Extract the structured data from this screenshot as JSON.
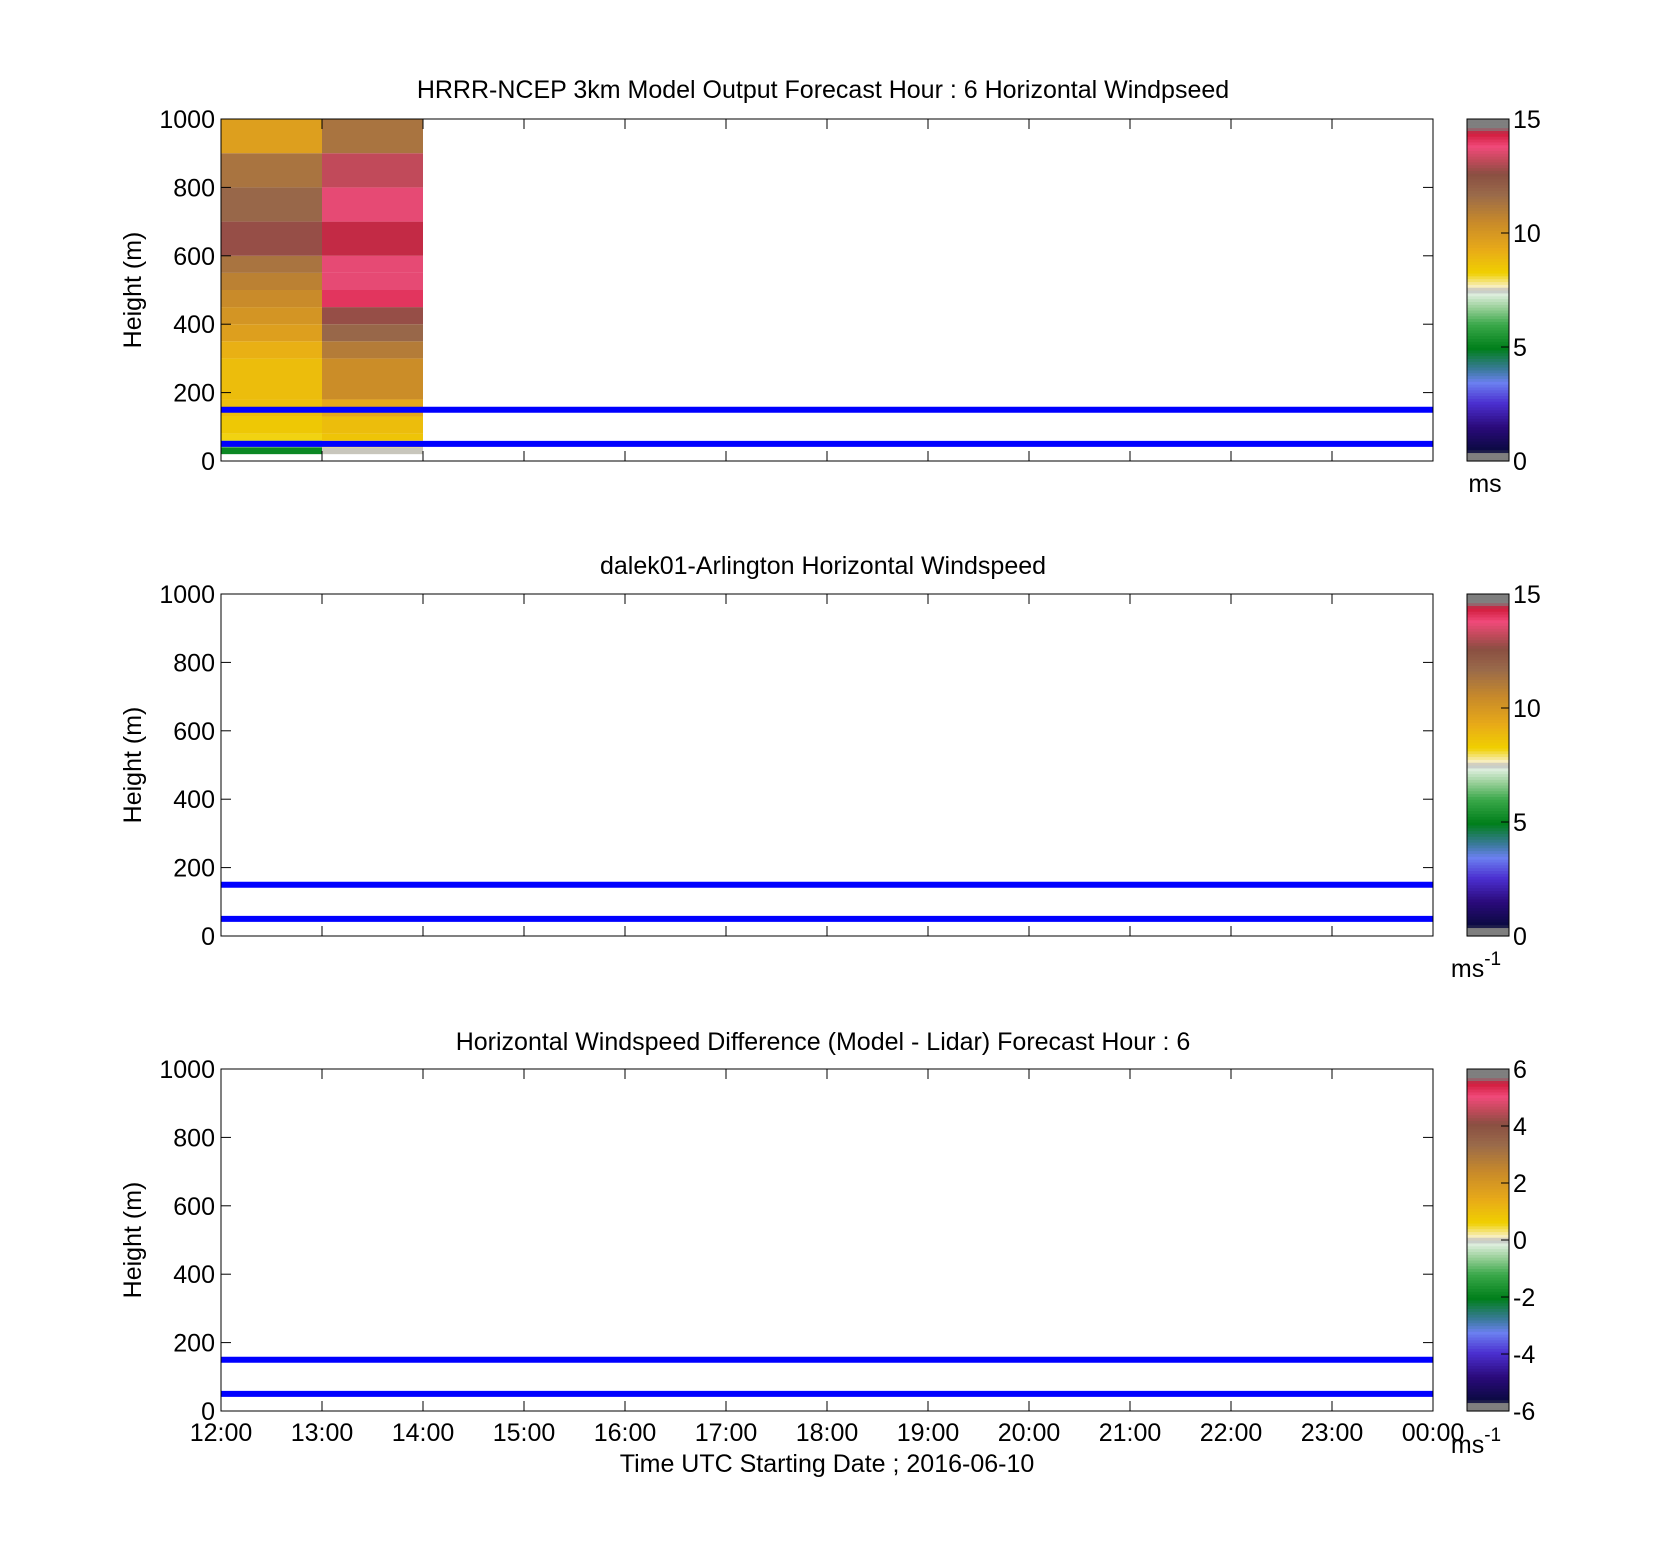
{
  "figure": {
    "xlabel": "Time UTC  Starting Date ; 2016-06-10"
  },
  "chart_data": [
    {
      "type": "heatmap",
      "title": "HRRR-NCEP 3km Model Output   Forecast Hour : 6 Horizontal Windpseed",
      "ylabel": "Height (m)",
      "ylim": [
        0,
        1000
      ],
      "yticks": [
        "0",
        "200",
        "400",
        "600",
        "800",
        "1000"
      ],
      "xlim": [
        "12:00",
        "00:00"
      ],
      "xtick_labels_shown": false,
      "grid": false,
      "colorbar": {
        "min": 0,
        "max": 15,
        "ticks": [
          "0",
          "5",
          "10",
          "15"
        ],
        "unit": "ms",
        "unit_sup": ""
      },
      "reference_lines_m": [
        50,
        150
      ],
      "reference_line_color": "#0000ff",
      "cells": {
        "columns": [
          {
            "t_start": 0,
            "t_end": 1
          },
          {
            "t_start": 1,
            "t_end": 2
          }
        ],
        "height_bounds_m": [
          20,
          40,
          60,
          80,
          130,
          180,
          300,
          350,
          400,
          450,
          500,
          550,
          600,
          700,
          800,
          900,
          1000
        ],
        "values": [
          [
            5.0,
            7.5
          ],
          [
            6.5,
            8.0
          ],
          [
            8.2,
            8.6
          ],
          [
            8.5,
            8.8
          ],
          [
            8.8,
            9.5
          ],
          [
            8.8,
            10.5
          ],
          [
            9.2,
            11.2
          ],
          [
            9.8,
            12.0
          ],
          [
            10.2,
            13.0
          ],
          [
            10.6,
            14.4
          ],
          [
            11.0,
            14.0
          ],
          [
            11.5,
            14.0
          ],
          [
            13.0,
            14.8
          ],
          [
            12.0,
            14.0
          ],
          [
            11.5,
            13.5
          ],
          [
            9.8,
            11.5
          ]
        ]
      }
    },
    {
      "type": "heatmap",
      "title": "dalek01-Arlington  Horizontal Windspeed",
      "ylabel": "Height (m)",
      "ylim": [
        0,
        1000
      ],
      "yticks": [
        "0",
        "200",
        "400",
        "600",
        "800",
        "1000"
      ],
      "xlim": [
        "12:00",
        "00:00"
      ],
      "xtick_labels_shown": false,
      "grid": false,
      "colorbar": {
        "min": 0,
        "max": 15,
        "ticks": [
          "0",
          "5",
          "10",
          "15"
        ],
        "unit": "ms",
        "unit_sup": "-1"
      },
      "reference_lines_m": [
        50,
        150
      ],
      "reference_line_color": "#0000ff",
      "cells": {
        "columns": [],
        "height_bounds_m": [],
        "values": []
      }
    },
    {
      "type": "heatmap",
      "title": "Horizontal Windspeed Difference (Model - Lidar) Forecast Hour : 6",
      "ylabel": "Height (m)",
      "ylim": [
        0,
        1000
      ],
      "yticks": [
        "0",
        "200",
        "400",
        "600",
        "800",
        "1000"
      ],
      "xlim": [
        "12:00",
        "00:00"
      ],
      "xtick_labels_shown": true,
      "xticks": [
        "12:00",
        "13:00",
        "14:00",
        "15:00",
        "16:00",
        "17:00",
        "18:00",
        "19:00",
        "20:00",
        "21:00",
        "22:00",
        "23:00",
        "00:00"
      ],
      "grid": false,
      "colorbar": {
        "min": -6,
        "max": 6,
        "ticks": [
          "-6",
          "-4",
          "-2",
          "0",
          "2",
          "4",
          "6"
        ],
        "unit": "ms",
        "unit_sup": "-1"
      },
      "reference_lines_m": [
        50,
        150
      ],
      "reference_line_color": "#0000ff",
      "cells": {
        "columns": [],
        "height_bounds_m": [],
        "values": []
      }
    }
  ]
}
